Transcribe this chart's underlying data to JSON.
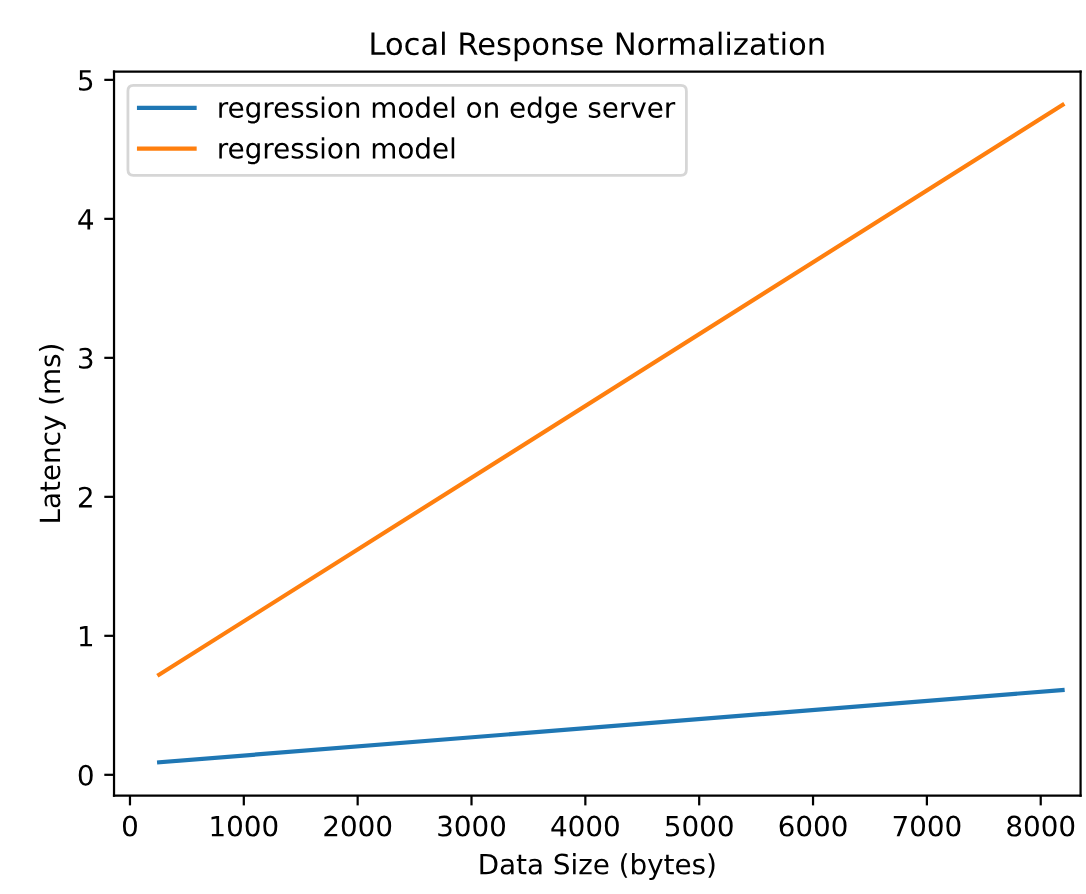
{
  "chart_data": {
    "type": "line",
    "title": "Local Response Normalization",
    "xlabel": "Data Size (bytes)",
    "ylabel": "Latency (ms)",
    "x": [
      256,
      8192
    ],
    "series": [
      {
        "name": "regression model on edge server",
        "color": "#1f77b4",
        "values": [
          0.09,
          0.61
        ]
      },
      {
        "name": "regression model",
        "color": "#ff7f0e",
        "values": [
          0.72,
          4.82
        ]
      }
    ],
    "xlim": [
      -140,
      8350
    ],
    "ylim": [
      -0.15,
      5.06
    ],
    "xticks": [
      0,
      1000,
      2000,
      3000,
      4000,
      5000,
      6000,
      7000,
      8000
    ],
    "yticks": [
      0,
      1,
      2,
      3,
      4,
      5
    ],
    "legend": "top left",
    "grid": false,
    "marker": "none",
    "line_style": "solid"
  }
}
